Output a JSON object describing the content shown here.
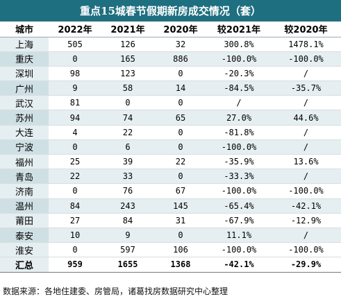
{
  "title": "重点15城春节假期新房成交情况（套）",
  "headers": [
    "城市",
    "2022年",
    "2021年",
    "2020年",
    "较2021年",
    "较2020年"
  ],
  "rows": [
    [
      "上海",
      "505",
      "126",
      "32",
      "300.8%",
      "1478.1%"
    ],
    [
      "重庆",
      "0",
      "165",
      "886",
      "-100.0%",
      "-100.0%"
    ],
    [
      "深圳",
      "98",
      "123",
      "0",
      "-20.3%",
      "/"
    ],
    [
      "广州",
      "9",
      "58",
      "14",
      "-84.5%",
      "-35.7%"
    ],
    [
      "武汉",
      "81",
      "0",
      "0",
      "/",
      "/"
    ],
    [
      "苏州",
      "94",
      "74",
      "65",
      "27.0%",
      "44.6%"
    ],
    [
      "大连",
      "4",
      "22",
      "0",
      "-81.8%",
      "/"
    ],
    [
      "宁波",
      "0",
      "6",
      "0",
      "-100.0%",
      "/"
    ],
    [
      "福州",
      "25",
      "39",
      "22",
      "-35.9%",
      "13.6%"
    ],
    [
      "青岛",
      "22",
      "33",
      "0",
      "-33.3%",
      "/"
    ],
    [
      "济南",
      "0",
      "76",
      "67",
      "-100.0%",
      "-100.0%"
    ],
    [
      "温州",
      "84",
      "243",
      "145",
      "-65.4%",
      "-42.1%"
    ],
    [
      "莆田",
      "27",
      "84",
      "31",
      "-67.9%",
      "-12.9%"
    ],
    [
      "泰安",
      "10",
      "9",
      "0",
      "11.1%",
      "/"
    ],
    [
      "淮安",
      "0",
      "597",
      "106",
      "-100.0%",
      "-100.0%"
    ]
  ],
  "total": [
    "汇总",
    "959",
    "1655",
    "1368",
    "-42.1%",
    "-29.9%"
  ],
  "source": "数据来源：各地住建委、房管局，诸葛找房数据研究中心整理"
}
